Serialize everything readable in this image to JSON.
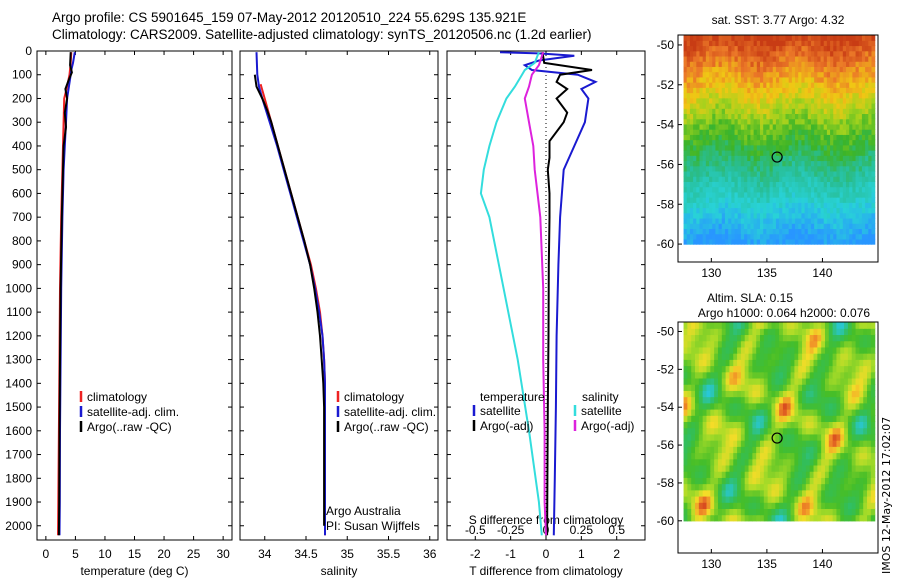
{
  "header": {
    "line1": "Argo profile: CS 5901645_159 07-May-2012 20120510_224 55.629S 135.921E",
    "line2": "Climatology: CARS2009. Satellite-adjusted climatology: synTS_20120506.nc (1.2d earlier)"
  },
  "side_label": "IMOS 12-May-2012 17:02:07",
  "colors": {
    "climatology": "#ee2222",
    "satellite": "#1a1ad0",
    "argo": "#000000",
    "sal_satellite": "#33dddd",
    "sal_argo": "#dd22dd"
  },
  "chart_data": [
    {
      "id": "temperature",
      "type": "line",
      "xlabel": "temperature (deg C)",
      "ylabel": "",
      "xlim": [
        -1.5,
        31.5
      ],
      "ylim": [
        0,
        2060
      ],
      "y_reversed": true,
      "xticks": [
        "0",
        "5",
        "10",
        "15",
        "20",
        "25",
        "30"
      ],
      "yticks": [
        "0",
        "100",
        "200",
        "300",
        "400",
        "500",
        "600",
        "700",
        "800",
        "900",
        "1000",
        "1100",
        "1200",
        "1300",
        "1400",
        "1500",
        "1600",
        "1700",
        "1800",
        "1900",
        "2000"
      ],
      "legend": [
        "climatology",
        "satellite-adj. clim.",
        "Argo(..raw -QC)"
      ],
      "series": [
        {
          "name": "climatology",
          "color": "climatology",
          "depth": [
            5,
            50,
            100,
            150,
            200,
            300,
            400,
            500,
            700,
            1000,
            1300,
            1600,
            1900,
            2040
          ],
          "values": [
            4.3,
            4.2,
            4.0,
            3.6,
            3.1,
            3.0,
            2.9,
            2.8,
            2.6,
            2.4,
            2.3,
            2.2,
            2.1,
            2.05
          ]
        },
        {
          "name": "satellite-adj. clim.",
          "color": "satellite",
          "depth": [
            5,
            50,
            80,
            100,
            150,
            200,
            300,
            400,
            500,
            700,
            1000,
            1300,
            1600,
            1900,
            2040
          ],
          "values": [
            4.9,
            4.6,
            4.3,
            4.2,
            3.9,
            3.6,
            3.4,
            3.2,
            3.0,
            2.8,
            2.6,
            2.5,
            2.4,
            2.35,
            2.3
          ]
        },
        {
          "name": "Argo(..raw -QC)",
          "color": "argo",
          "depth": [
            5,
            60,
            90,
            120,
            160,
            200,
            260,
            320,
            400,
            500,
            700,
            1000,
            1300,
            1600,
            1900,
            2040
          ],
          "values": [
            4.2,
            4.1,
            4.4,
            3.9,
            3.3,
            3.6,
            3.2,
            3.4,
            3.0,
            2.9,
            2.7,
            2.5,
            2.4,
            2.3,
            2.25,
            2.2
          ]
        }
      ]
    },
    {
      "id": "salinity",
      "type": "line",
      "xlabel": "salinity",
      "ylabel": "",
      "xlim": [
        33.7,
        36.1
      ],
      "ylim": [
        0,
        2060
      ],
      "y_reversed": true,
      "xticks": [
        "34",
        "34.5",
        "35",
        "35.5",
        "36"
      ],
      "legend": [
        "climatology",
        "satellite-adj. clim.",
        "Argo(..raw -QC)"
      ],
      "annotation": [
        "Argo Australia",
        "PI: Susan Wijffels"
      ],
      "series": [
        {
          "name": "climatology",
          "color": "climatology",
          "depth": [
            140,
            200,
            300,
            400,
            500,
            600,
            700,
            800,
            900,
            1000,
            1100,
            1200,
            1300,
            1400,
            1600,
            1800,
            2040
          ],
          "values": [
            33.95,
            34.0,
            34.08,
            34.16,
            34.24,
            34.32,
            34.4,
            34.48,
            34.56,
            34.62,
            34.67,
            34.7,
            34.72,
            34.73,
            34.73,
            34.73,
            34.73
          ]
        },
        {
          "name": "satellite-adj. clim.",
          "color": "satellite",
          "depth": [
            5,
            100,
            150,
            200,
            300,
            400,
            500,
            600,
            700,
            800,
            900,
            1000,
            1100,
            1200,
            1300,
            1400,
            1600,
            1800,
            2040
          ],
          "values": [
            33.9,
            33.91,
            33.93,
            33.97,
            34.06,
            34.15,
            34.23,
            34.31,
            34.39,
            34.47,
            34.55,
            34.61,
            34.66,
            34.7,
            34.72,
            34.73,
            34.73,
            34.73,
            34.73
          ]
        },
        {
          "name": "Argo(..raw -QC)",
          "color": "argo",
          "depth": [
            100,
            150,
            200,
            250,
            300,
            400,
            500,
            600,
            700,
            800,
            900,
            1000,
            1100,
            1200,
            1300,
            1400,
            1500,
            1600,
            1700,
            1800,
            1900,
            2000
          ],
          "values": [
            33.88,
            33.9,
            33.97,
            34.03,
            34.08,
            34.16,
            34.24,
            34.32,
            34.4,
            34.48,
            34.55,
            34.6,
            34.64,
            34.67,
            34.69,
            34.71,
            34.72,
            34.72,
            34.72,
            34.72,
            34.72,
            34.72
          ]
        }
      ]
    },
    {
      "id": "difference",
      "type": "line",
      "xlabel": "T difference from climatology",
      "xlabel2": "S difference from climatology",
      "ylabel": "",
      "xlim": [
        -2.8,
        2.8
      ],
      "ylim": [
        0,
        2060
      ],
      "y_reversed": true,
      "xticks": [
        "-2",
        "-1",
        "0",
        "1",
        "2"
      ],
      "xticks2": [
        "-0.5",
        "-0.25",
        "0",
        "0.25",
        "0.5"
      ],
      "legend_groups": [
        {
          "title": "temperature",
          "items": [
            "satellite",
            "Argo(-adj)"
          ]
        },
        {
          "title": "salinity",
          "items": [
            "satellite",
            "Argo(-adj)"
          ]
        }
      ],
      "series": [
        {
          "name": "satellite",
          "group": "temperature",
          "color": "satellite",
          "depth": [
            5,
            10,
            20,
            40,
            60,
            80,
            100,
            130,
            160,
            200,
            300,
            400,
            500,
            600,
            700,
            900,
            1200,
            1500,
            1800,
            2040
          ],
          "values": [
            -1.3,
            -0.2,
            0.8,
            -0.2,
            -0.6,
            -0.4,
            0.9,
            1.4,
            1.0,
            1.2,
            1.1,
            0.8,
            0.5,
            0.45,
            0.4,
            0.35,
            0.3,
            0.28,
            0.25,
            0.22
          ]
        },
        {
          "name": "Argo(-adj)",
          "group": "temperature",
          "color": "argo",
          "depth": [
            5,
            50,
            80,
            100,
            130,
            160,
            200,
            260,
            300,
            380,
            450,
            500,
            600,
            700,
            900,
            1200,
            1500,
            1800,
            2040
          ],
          "values": [
            -0.1,
            -0.05,
            1.3,
            0.4,
            0.3,
            0.6,
            0.3,
            0.6,
            0.5,
            0.1,
            0.1,
            0.05,
            0.1,
            0.1,
            0.08,
            0.07,
            0.05,
            0.04,
            0.03
          ]
        },
        {
          "name": "satellite",
          "group": "salinity",
          "color": "sal_satellite",
          "depth": [
            5,
            50,
            80,
            100,
            150,
            200,
            300,
            400,
            500,
            600,
            700,
            1000,
            1300,
            1600,
            1900,
            2040
          ],
          "values": [
            -0.05,
            -0.08,
            -0.15,
            -0.17,
            -0.22,
            -0.28,
            -0.35,
            -0.4,
            -0.44,
            -0.46,
            -0.4,
            -0.3,
            -0.2,
            -0.12,
            -0.05,
            -0.03
          ]
        },
        {
          "name": "Argo(-adj)",
          "group": "salinity",
          "color": "sal_argo",
          "depth": [
            5,
            60,
            100,
            150,
            200,
            300,
            400,
            500,
            600,
            700,
            1000,
            1300,
            1600,
            1900,
            2040
          ],
          "values": [
            -0.02,
            -0.05,
            -0.1,
            -0.12,
            -0.15,
            -0.12,
            -0.09,
            -0.08,
            -0.06,
            -0.04,
            -0.02,
            -0.02,
            -0.01,
            -0.01,
            0
          ]
        }
      ]
    },
    {
      "id": "sst_map",
      "type": "heatmap",
      "title": "sat. SST: 3.77  Argo: 4.32",
      "xlim": [
        127,
        145
      ],
      "ylim": [
        -60.9,
        -49.5
      ],
      "data_ylim": [
        -60,
        -49.5
      ],
      "xticks": [
        "130",
        "135",
        "140"
      ],
      "yticks": [
        "-50",
        "-52",
        "-54",
        "-56",
        "-58",
        "-60"
      ],
      "marker": {
        "lon": 135.921,
        "lat": -55.629
      }
    },
    {
      "id": "sla_map",
      "type": "heatmap",
      "title": "Altim. SLA: 0.15",
      "subtitle": "Argo h1000: 0.064 h2000: 0.076",
      "xlim": [
        127,
        145
      ],
      "ylim": [
        -61.7,
        -49.5
      ],
      "data_ylim": [
        -60,
        -49.5
      ],
      "xticks": [
        "130",
        "135",
        "140"
      ],
      "yticks": [
        "-50",
        "-52",
        "-54",
        "-56",
        "-58",
        "-60"
      ],
      "marker": {
        "lon": 135.921,
        "lat": -55.629
      }
    }
  ]
}
